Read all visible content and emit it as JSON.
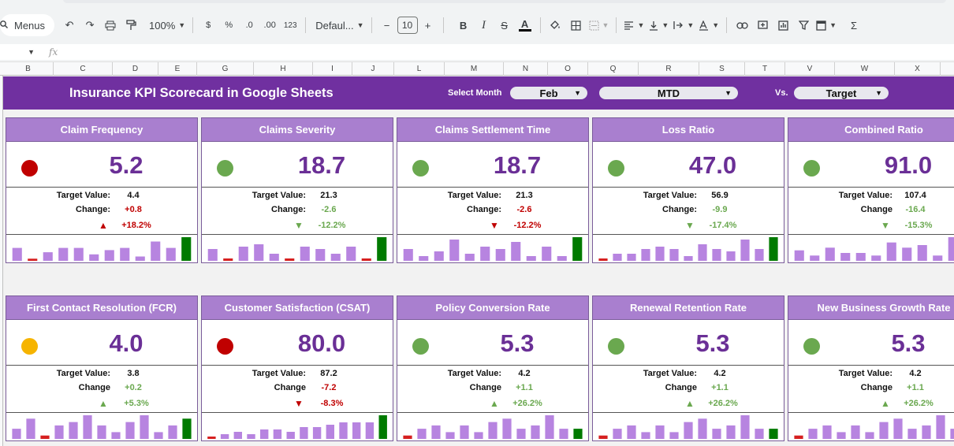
{
  "toolbar": {
    "menus_label": "Menus",
    "zoom": "100%",
    "currency": "$",
    "percent": "%",
    "dec_decrease": ".0",
    "dec_increase": ".00",
    "number_format": "123",
    "font_name": "Defaul...",
    "font_size": "10",
    "minus": "−",
    "plus": "+",
    "bold": "B",
    "italic": "I",
    "strike": "S",
    "text_color": "A",
    "sigma": "Σ"
  },
  "formula_bar": {
    "fx": "fx"
  },
  "columns": [
    "B",
    "C",
    "D",
    "E",
    "G",
    "H",
    "I",
    "J",
    "L",
    "M",
    "N",
    "O",
    "Q",
    "R",
    "S",
    "T",
    "V",
    "W",
    "X"
  ],
  "header": {
    "title": "Insurance KPI Scorecard in Google Sheets",
    "select_month_label": "Select Month",
    "month": "Feb",
    "period": "MTD",
    "vs_label": "Vs.",
    "compare": "Target"
  },
  "colors": {
    "header_bg": "#7030a0",
    "card_title_bg": "#a97fcf",
    "value_color": "#6a2f96",
    "red": "#c00000",
    "green": "#6aa84f",
    "amber": "#f6b400",
    "bar_purple": "#b784e0",
    "bar_green": "#007a00",
    "bar_red": "#d62020"
  },
  "cards": [
    {
      "title": "Claim Frequency",
      "value": "5.2",
      "status": "red",
      "target_label": "Target Value:",
      "target": "4.4",
      "change_label": "Change:",
      "change": "+0.8",
      "change_color": "red",
      "arrow": "up",
      "arrow_color": "red",
      "pct": "+18.2%",
      "pct_color": "red",
      "bars": [
        6,
        1,
        4,
        6,
        6,
        3,
        5,
        6,
        2,
        9,
        6,
        11
      ]
    },
    {
      "title": "Claims Severity",
      "value": "18.7",
      "status": "green",
      "target_label": "Target Value:",
      "target": "21.3",
      "change_label": "Change:",
      "change": "-2.6",
      "change_color": "green",
      "arrow": "down",
      "arrow_color": "green",
      "pct": "-12.2%",
      "pct_color": "green",
      "bars": [
        5,
        1,
        6,
        7,
        3,
        1,
        6,
        5,
        3,
        6,
        1,
        10
      ]
    },
    {
      "title": "Claims Settlement Time",
      "value": "18.7",
      "status": "green",
      "target_label": "Target Value:",
      "target": "21.3",
      "change_label": "Change:",
      "change": "-2.6",
      "change_color": "red",
      "arrow": "down",
      "arrow_color": "red",
      "pct": "-12.2%",
      "pct_color": "red",
      "bars": [
        5,
        2,
        4,
        9,
        3,
        6,
        5,
        8,
        2,
        6,
        2,
        10
      ]
    },
    {
      "title": "Loss Ratio",
      "value": "47.0",
      "status": "green",
      "target_label": "Target Value:",
      "target": "56.9",
      "change_label": "Change:",
      "change": "-9.9",
      "change_color": "green",
      "arrow": "down",
      "arrow_color": "green",
      "pct": "-17.4%",
      "pct_color": "green",
      "bars": [
        1,
        3,
        3,
        5,
        6,
        5,
        2,
        7,
        5,
        4,
        9,
        5,
        10
      ]
    },
    {
      "title": "Combined Ratio",
      "value": "91.0",
      "status": "green",
      "target_label": "Target Value:",
      "target": "107.4",
      "change_label": "Change",
      "change": "-16.4",
      "change_color": "green",
      "arrow": "down",
      "arrow_color": "green",
      "pct": "-15.3%",
      "pct_color": "green",
      "bars": [
        4,
        2,
        5,
        3,
        3,
        2,
        7,
        5,
        6,
        2,
        9,
        6
      ]
    },
    {
      "title": "First Contact Resolution (FCR)",
      "value": "4.0",
      "status": "amber",
      "target_label": "Target Value:",
      "target": "3.8",
      "change_label": "Change",
      "change": "+0.2",
      "change_color": "green",
      "arrow": "up",
      "arrow_color": "green",
      "pct": "+5.3%",
      "pct_color": "green",
      "bars": [
        3,
        6,
        1,
        4,
        5,
        7,
        4,
        2,
        5,
        7,
        2,
        4,
        6
      ]
    },
    {
      "title": "Customer Satisfaction (CSAT)",
      "value": "80.0",
      "status": "red",
      "target_label": "Target Value:",
      "target": "87.2",
      "change_label": "Change",
      "change": "-7.2",
      "change_color": "red",
      "arrow": "down",
      "arrow_color": "red",
      "pct": "-8.3%",
      "pct_color": "red",
      "bars": [
        1,
        2,
        3,
        2,
        4,
        4,
        3,
        5,
        5,
        6,
        7,
        7,
        7,
        10
      ]
    },
    {
      "title": "Policy Conversion Rate",
      "value": "5.3",
      "status": "green",
      "target_label": "Target Value:",
      "target": "4.2",
      "change_label": "Change",
      "change": "+1.1",
      "change_color": "green",
      "arrow": "up",
      "arrow_color": "green",
      "pct": "+26.2%",
      "pct_color": "green",
      "bars": [
        1,
        3,
        4,
        2,
        4,
        2,
        5,
        6,
        3,
        4,
        7,
        3,
        3
      ]
    },
    {
      "title": "Renewal Retention Rate",
      "value": "5.3",
      "status": "green",
      "target_label": "Target Value:",
      "target": "4.2",
      "change_label": "Change",
      "change": "+1.1",
      "change_color": "green",
      "arrow": "up",
      "arrow_color": "green",
      "pct": "+26.2%",
      "pct_color": "green",
      "bars": [
        1,
        3,
        4,
        2,
        4,
        2,
        5,
        6,
        3,
        4,
        7,
        3,
        3
      ]
    },
    {
      "title": "New Business Growth Rate",
      "value": "5.3",
      "status": "green",
      "target_label": "Target Value:",
      "target": "4.2",
      "change_label": "Change",
      "change": "+1.1",
      "change_color": "green",
      "arrow": "up",
      "arrow_color": "green",
      "pct": "+26.2%",
      "pct_color": "green",
      "bars": [
        1,
        3,
        4,
        2,
        4,
        2,
        5,
        6,
        3,
        4,
        7,
        3,
        3
      ]
    }
  ]
}
